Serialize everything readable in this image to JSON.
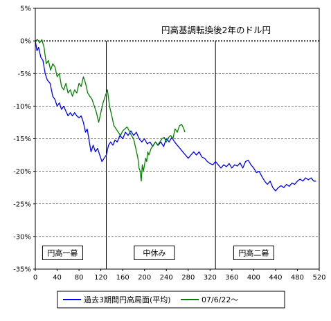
{
  "chart_data": {
    "type": "line",
    "title": "円高基調転換後2年のドル円",
    "xlabel": "",
    "ylabel": "",
    "xlim": [
      0,
      520
    ],
    "ylim": [
      -35,
      5
    ],
    "x_ticks": [
      0,
      40,
      80,
      120,
      160,
      200,
      240,
      280,
      320,
      360,
      400,
      440,
      480,
      520
    ],
    "y_ticks": [
      5,
      0,
      -5,
      -10,
      -15,
      -20,
      -25,
      -30,
      -35
    ],
    "y_tick_labels": [
      "5%",
      "0%",
      "-5%",
      "-10%",
      "-15%",
      "-20%",
      "-25%",
      "-30%",
      "-35%"
    ],
    "grid": "horizontal dashed",
    "reference_line_y": 0,
    "phase_dividers_x": [
      130,
      330
    ],
    "phases": [
      {
        "label": "円高一幕",
        "x": 50
      },
      {
        "label": "中休み",
        "x": 218
      },
      {
        "label": "円高二幕",
        "x": 400
      }
    ],
    "phase_label_y": -32.5,
    "legend_position": "bottom",
    "series": [
      {
        "name": "過去3期間円高局面(平均)",
        "color": "#0000ff",
        "points": [
          [
            0,
            0
          ],
          [
            3,
            -1.5
          ],
          [
            6,
            -1
          ],
          [
            10,
            -2.5
          ],
          [
            14,
            -3
          ],
          [
            18,
            -5
          ],
          [
            22,
            -6
          ],
          [
            27,
            -6.5
          ],
          [
            32,
            -8.5
          ],
          [
            36,
            -9
          ],
          [
            40,
            -10
          ],
          [
            44,
            -9.5
          ],
          [
            48,
            -10.5
          ],
          [
            52,
            -10
          ],
          [
            56,
            -10.8
          ],
          [
            60,
            -11.5
          ],
          [
            64,
            -11
          ],
          [
            68,
            -11.5
          ],
          [
            72,
            -11
          ],
          [
            76,
            -11.5
          ],
          [
            80,
            -11.8
          ],
          [
            84,
            -11.5
          ],
          [
            88,
            -12.5
          ],
          [
            92,
            -14
          ],
          [
            95,
            -13.5
          ],
          [
            98,
            -15
          ],
          [
            102,
            -17
          ],
          [
            106,
            -16
          ],
          [
            110,
            -17
          ],
          [
            114,
            -16.5
          ],
          [
            118,
            -17.5
          ],
          [
            122,
            -18.5
          ],
          [
            126,
            -18
          ],
          [
            130,
            -17.5
          ],
          [
            134,
            -16
          ],
          [
            138,
            -15.5
          ],
          [
            142,
            -16
          ],
          [
            146,
            -15.2
          ],
          [
            150,
            -15.5
          ],
          [
            155,
            -14.5
          ],
          [
            160,
            -15
          ],
          [
            165,
            -14
          ],
          [
            170,
            -14.5
          ],
          [
            175,
            -13.8
          ],
          [
            180,
            -14.5
          ],
          [
            185,
            -14
          ],
          [
            190,
            -15
          ],
          [
            195,
            -15.5
          ],
          [
            200,
            -15
          ],
          [
            205,
            -15.8
          ],
          [
            210,
            -15.5
          ],
          [
            215,
            -16.2
          ],
          [
            220,
            -15.5
          ],
          [
            225,
            -16
          ],
          [
            230,
            -15.5
          ],
          [
            235,
            -16.2
          ],
          [
            240,
            -15
          ],
          [
            245,
            -15.5
          ],
          [
            250,
            -14.8
          ],
          [
            255,
            -15.5
          ],
          [
            260,
            -16
          ],
          [
            265,
            -16.5
          ],
          [
            270,
            -17
          ],
          [
            275,
            -17.5
          ],
          [
            280,
            -18
          ],
          [
            285,
            -17.5
          ],
          [
            290,
            -17
          ],
          [
            295,
            -17.5
          ],
          [
            300,
            -17
          ],
          [
            305,
            -17.8
          ],
          [
            310,
            -18
          ],
          [
            315,
            -18.5
          ],
          [
            320,
            -18.8
          ],
          [
            325,
            -19
          ],
          [
            330,
            -18.5
          ],
          [
            335,
            -19
          ],
          [
            340,
            -19.5
          ],
          [
            345,
            -19
          ],
          [
            350,
            -19.3
          ],
          [
            355,
            -18.8
          ],
          [
            360,
            -19.5
          ],
          [
            365,
            -19
          ],
          [
            370,
            -19.2
          ],
          [
            375,
            -18.7
          ],
          [
            380,
            -19.5
          ],
          [
            385,
            -18.5
          ],
          [
            390,
            -18.3
          ],
          [
            395,
            -19
          ],
          [
            400,
            -19.5
          ],
          [
            405,
            -20.2
          ],
          [
            410,
            -20
          ],
          [
            415,
            -20.8
          ],
          [
            420,
            -21.5
          ],
          [
            425,
            -22
          ],
          [
            430,
            -21.5
          ],
          [
            435,
            -22.5
          ],
          [
            440,
            -23
          ],
          [
            445,
            -22.5
          ],
          [
            450,
            -22.2
          ],
          [
            455,
            -22.5
          ],
          [
            460,
            -22
          ],
          [
            465,
            -22.3
          ],
          [
            470,
            -21.8
          ],
          [
            475,
            -22
          ],
          [
            480,
            -21.5
          ],
          [
            485,
            -21.2
          ],
          [
            490,
            -21.5
          ],
          [
            495,
            -21
          ],
          [
            500,
            -21.3
          ],
          [
            505,
            -21
          ],
          [
            510,
            -21.5
          ],
          [
            514,
            -21.5
          ]
        ]
      },
      {
        "name": "07/6/22～",
        "color": "#008000",
        "points": [
          [
            0,
            0
          ],
          [
            4,
            0.2
          ],
          [
            8,
            -0.3
          ],
          [
            12,
            0.2
          ],
          [
            16,
            -1
          ],
          [
            20,
            -3.5
          ],
          [
            24,
            -3
          ],
          [
            28,
            -4.5
          ],
          [
            32,
            -3.5
          ],
          [
            36,
            -4
          ],
          [
            40,
            -5.5
          ],
          [
            44,
            -5
          ],
          [
            48,
            -7
          ],
          [
            52,
            -7.5
          ],
          [
            56,
            -6.5
          ],
          [
            60,
            -8
          ],
          [
            64,
            -7.5
          ],
          [
            68,
            -8.5
          ],
          [
            72,
            -7.5
          ],
          [
            76,
            -8
          ],
          [
            80,
            -6.5
          ],
          [
            84,
            -7
          ],
          [
            88,
            -5.5
          ],
          [
            92,
            -6.5
          ],
          [
            96,
            -8
          ],
          [
            100,
            -8.5
          ],
          [
            104,
            -9
          ],
          [
            108,
            -10
          ],
          [
            112,
            -11
          ],
          [
            116,
            -12.5
          ],
          [
            120,
            -11
          ],
          [
            124,
            -9.5
          ],
          [
            128,
            -8.5
          ],
          [
            132,
            -7.5
          ],
          [
            136,
            -10
          ],
          [
            140,
            -11.5
          ],
          [
            144,
            -13
          ],
          [
            148,
            -13.5
          ],
          [
            152,
            -14
          ],
          [
            156,
            -14.5
          ],
          [
            160,
            -13.8
          ],
          [
            164,
            -13.5
          ],
          [
            168,
            -13.2
          ],
          [
            172,
            -13.8
          ],
          [
            176,
            -14.5
          ],
          [
            180,
            -15
          ],
          [
            184,
            -16.5
          ],
          [
            188,
            -18
          ],
          [
            190,
            -19.5
          ],
          [
            192,
            -20
          ],
          [
            194,
            -21.5
          ],
          [
            196,
            -19
          ],
          [
            198,
            -20
          ],
          [
            200,
            -19
          ],
          [
            202,
            -18
          ],
          [
            204,
            -18.5
          ],
          [
            206,
            -17
          ],
          [
            208,
            -17.5
          ],
          [
            212,
            -16.5
          ],
          [
            216,
            -16
          ],
          [
            220,
            -15.5
          ],
          [
            224,
            -16
          ],
          [
            228,
            -15.5
          ],
          [
            232,
            -15
          ],
          [
            236,
            -14.8
          ],
          [
            240,
            -15.5
          ],
          [
            244,
            -14.8
          ],
          [
            248,
            -14.5
          ],
          [
            252,
            -15
          ],
          [
            256,
            -13.5
          ],
          [
            260,
            -14
          ],
          [
            264,
            -13
          ],
          [
            268,
            -12.8
          ],
          [
            272,
            -13.5
          ],
          [
            274,
            -14
          ]
        ]
      }
    ],
    "legend": [
      {
        "label": "過去3期間円高局面(平均)",
        "color": "#0000ff"
      },
      {
        "label": "07/6/22～",
        "color": "#008000"
      }
    ]
  }
}
